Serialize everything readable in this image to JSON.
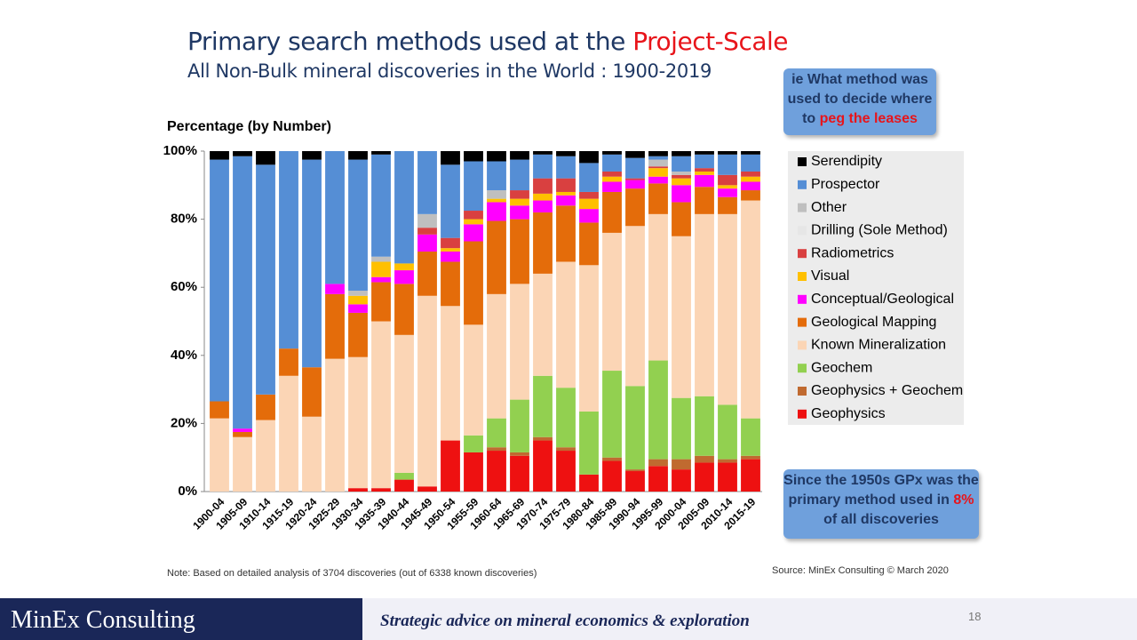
{
  "header": {
    "title": "Primary search methods used at the",
    "title_highlight": "Project-Scale",
    "subtitle": "All Non-Bulk mineral discoveries in the World : 1900-2019"
  },
  "callouts": [
    {
      "text": "ie What method was used to decide where to",
      "highlight": "peg the leases"
    },
    {
      "text": "Since the 1950s GPx was the primary method used in",
      "highlight": "8%",
      "text_after": "of all discoveries"
    }
  ],
  "chart_data": {
    "type": "stacked-bar",
    "y_label": "Percentage (by Number)",
    "categories": [
      "1900-04",
      "1905-09",
      "1910-14",
      "1915-19",
      "1920-24",
      "1925-29",
      "1930-34",
      "1935-39",
      "1940-44",
      "1945-49",
      "1950-54",
      "1955-59",
      "1960-64",
      "1965-69",
      "1970-74",
      "1975-79",
      "1980-84",
      "1985-89",
      "1990-94",
      "1995-99",
      "2000-04",
      "2005-09",
      "2010-14",
      "2015-19"
    ],
    "ylim": [
      0,
      100
    ],
    "yticks": [
      {
        "value": 0,
        "label": "0%"
      },
      {
        "value": 20,
        "label": "20%"
      },
      {
        "value": 40,
        "label": "40%"
      },
      {
        "value": 60,
        "label": "60%"
      },
      {
        "value": 80,
        "label": "80%"
      },
      {
        "value": 100,
        "label": "100%"
      }
    ],
    "legend": "right",
    "series": [
      {
        "name": "Geophysics",
        "color": "#ee1111",
        "values": [
          0,
          0,
          0,
          0,
          0,
          0,
          1,
          1,
          3.5,
          1.5,
          15,
          11.5,
          12,
          10.5,
          15,
          12,
          5,
          9,
          6,
          7.5,
          6.5,
          8.5,
          8.5,
          9.5
        ]
      },
      {
        "name": "Geophysics + Geochem",
        "color": "#c06a30",
        "values": [
          0,
          0,
          0,
          0,
          0,
          0,
          0,
          0,
          0,
          0,
          0,
          0,
          1,
          1,
          1,
          1,
          0,
          1,
          0.5,
          2,
          3,
          2,
          1,
          1
        ]
      },
      {
        "name": "Geochem",
        "color": "#92d050",
        "values": [
          0,
          0,
          0,
          0,
          0,
          0,
          0,
          0,
          2,
          0,
          0,
          5,
          8.5,
          15.5,
          18,
          17.5,
          18.5,
          25.5,
          24.5,
          29,
          18,
          17.5,
          16,
          11
        ]
      },
      {
        "name": "Known Mineralization",
        "color": "#fbd5b5",
        "values": [
          21.5,
          16,
          21,
          34,
          22,
          39,
          38.5,
          49,
          40.5,
          56,
          39.5,
          32.5,
          36.5,
          34,
          30,
          37,
          43,
          40.5,
          47,
          43,
          47.5,
          53.5,
          56,
          64
        ]
      },
      {
        "name": "Geological Mapping",
        "color": "#e46c0a",
        "values": [
          5,
          1.5,
          7.5,
          8,
          14.5,
          19,
          13,
          11.5,
          15,
          13,
          13,
          24.5,
          21.5,
          19,
          18,
          16.5,
          12.5,
          12,
          11,
          9,
          10,
          8,
          5,
          3
        ]
      },
      {
        "name": "Conceptual/Geological",
        "color": "#ff00ff",
        "values": [
          0,
          1,
          0,
          0,
          0,
          3,
          2.5,
          1.5,
          4,
          5,
          3,
          5,
          5.5,
          4,
          3.5,
          3,
          4,
          3,
          2.5,
          2,
          5,
          3.5,
          2.5,
          2.5
        ]
      },
      {
        "name": "Visual",
        "color": "#ffc000",
        "values": [
          0,
          0,
          0,
          0,
          0,
          0,
          2.5,
          4.5,
          2,
          0,
          1,
          1.5,
          1,
          2,
          2,
          1,
          3,
          1.5,
          0,
          2.5,
          2,
          1,
          1,
          1.5
        ]
      },
      {
        "name": "Radiometrics",
        "color": "#d94040",
        "values": [
          0,
          0,
          0,
          0,
          0,
          0,
          0,
          0,
          0,
          2,
          3,
          2.5,
          0,
          2.5,
          4.5,
          4,
          2,
          1.5,
          0.5,
          0.5,
          1,
          1,
          3,
          1.5
        ]
      },
      {
        "name": "Drilling (Sole Method)",
        "color": "#e6e6e6",
        "values": [
          0,
          0,
          0,
          0,
          0,
          0,
          0,
          0,
          0,
          0,
          0,
          0,
          0,
          0,
          0,
          0,
          0,
          0,
          0,
          0,
          0,
          0,
          0,
          0
        ]
      },
      {
        "name": "Other",
        "color": "#bfbfbf",
        "values": [
          0,
          0,
          0,
          0,
          0,
          0,
          1.5,
          1.5,
          0,
          4,
          0,
          0,
          2.5,
          0,
          0,
          0,
          0,
          0,
          0,
          2,
          1,
          0,
          0,
          0
        ]
      },
      {
        "name": "Prospector",
        "color": "#558ed5",
        "values": [
          71,
          80,
          67.5,
          58,
          61,
          39,
          38.5,
          30,
          33,
          18.5,
          21.5,
          14.5,
          8.5,
          9,
          7,
          6.5,
          8.5,
          5,
          6,
          1,
          4.5,
          4,
          6,
          5
        ]
      },
      {
        "name": "Serendipity",
        "color": "#000000",
        "values": [
          2.5,
          1.5,
          4,
          0,
          2.5,
          0,
          2.5,
          1,
          0,
          0,
          4,
          3,
          3,
          2.5,
          1,
          1.5,
          3.5,
          1,
          2,
          1.5,
          1.5,
          1,
          1,
          1
        ]
      }
    ]
  },
  "note": "Note: Based on detailed analysis of 3704 discoveries (out of 6338 known discoveries)",
  "source": "Source: MinEx Consulting  © March 2020",
  "footer": {
    "brand": "MinEx Consulting",
    "tagline": "Strategic advice on mineral economics & exploration",
    "page": "18"
  }
}
